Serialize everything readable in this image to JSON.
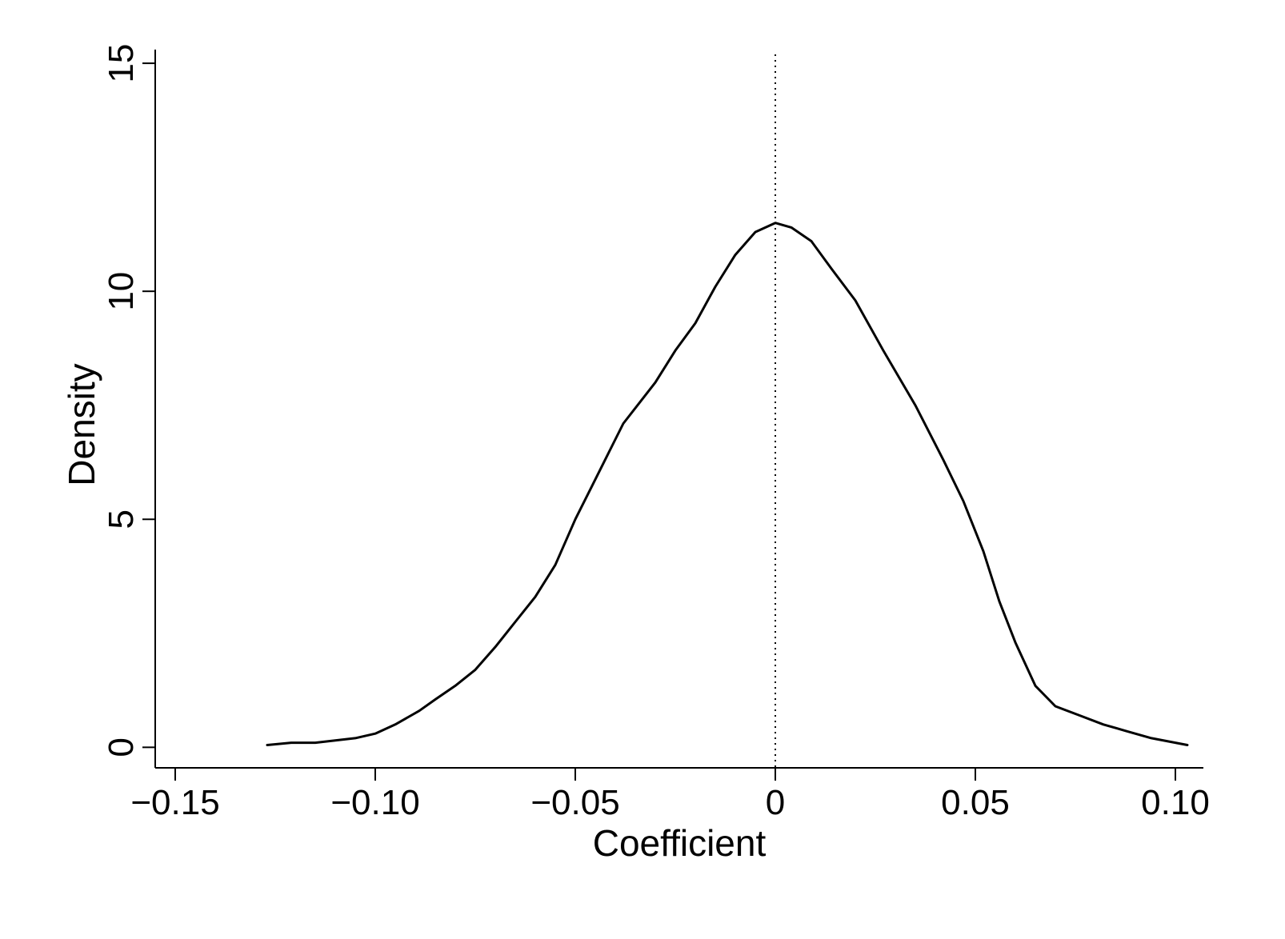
{
  "chart_data": {
    "type": "line",
    "title": "",
    "xlabel": "Coefficient",
    "ylabel": "Density",
    "xlim": [
      -0.155,
      0.107
    ],
    "ylim": [
      -0.45,
      15.3
    ],
    "x_ticks": [
      -0.15,
      -0.1,
      -0.05,
      0,
      0.05,
      0.1
    ],
    "x_tick_labels": [
      "−0.15",
      "−0.10",
      "−0.05",
      "0",
      "0.05",
      "0.10"
    ],
    "y_ticks": [
      0,
      5,
      10,
      15
    ],
    "y_tick_labels": [
      "0",
      "5",
      "10",
      "15"
    ],
    "grid": false,
    "legend": "none",
    "reference_line": {
      "x": 0,
      "style": "dotted"
    },
    "colors": {
      "line": "#000000",
      "axis": "#000000",
      "reference": "#000000",
      "background": "#ffffff"
    },
    "series": [
      {
        "x": [
          -0.127,
          -0.121,
          -0.115,
          -0.11,
          -0.105,
          -0.1,
          -0.095,
          -0.089,
          -0.085,
          -0.08,
          -0.075,
          -0.07,
          -0.065,
          -0.06,
          -0.055,
          -0.05,
          -0.046,
          -0.042,
          -0.038,
          -0.03,
          -0.025,
          -0.02,
          -0.015,
          -0.01,
          -0.005,
          0.0,
          0.004,
          0.009,
          0.014,
          0.02,
          0.027,
          0.035,
          0.042,
          0.047,
          0.052,
          0.056,
          0.06,
          0.065,
          0.07,
          0.076,
          0.082,
          0.088,
          0.094,
          0.1,
          0.103
        ],
        "values": [
          0.05,
          0.1,
          0.1,
          0.15,
          0.2,
          0.3,
          0.5,
          0.8,
          1.05,
          1.35,
          1.7,
          2.2,
          2.75,
          3.3,
          4.0,
          5.0,
          5.7,
          6.4,
          7.1,
          8.0,
          8.7,
          9.3,
          10.1,
          10.8,
          11.3,
          11.5,
          11.4,
          11.1,
          10.5,
          9.8,
          8.7,
          7.5,
          6.3,
          5.4,
          4.3,
          3.2,
          2.3,
          1.35,
          0.9,
          0.7,
          0.5,
          0.35,
          0.2,
          0.1,
          0.05
        ]
      }
    ]
  }
}
